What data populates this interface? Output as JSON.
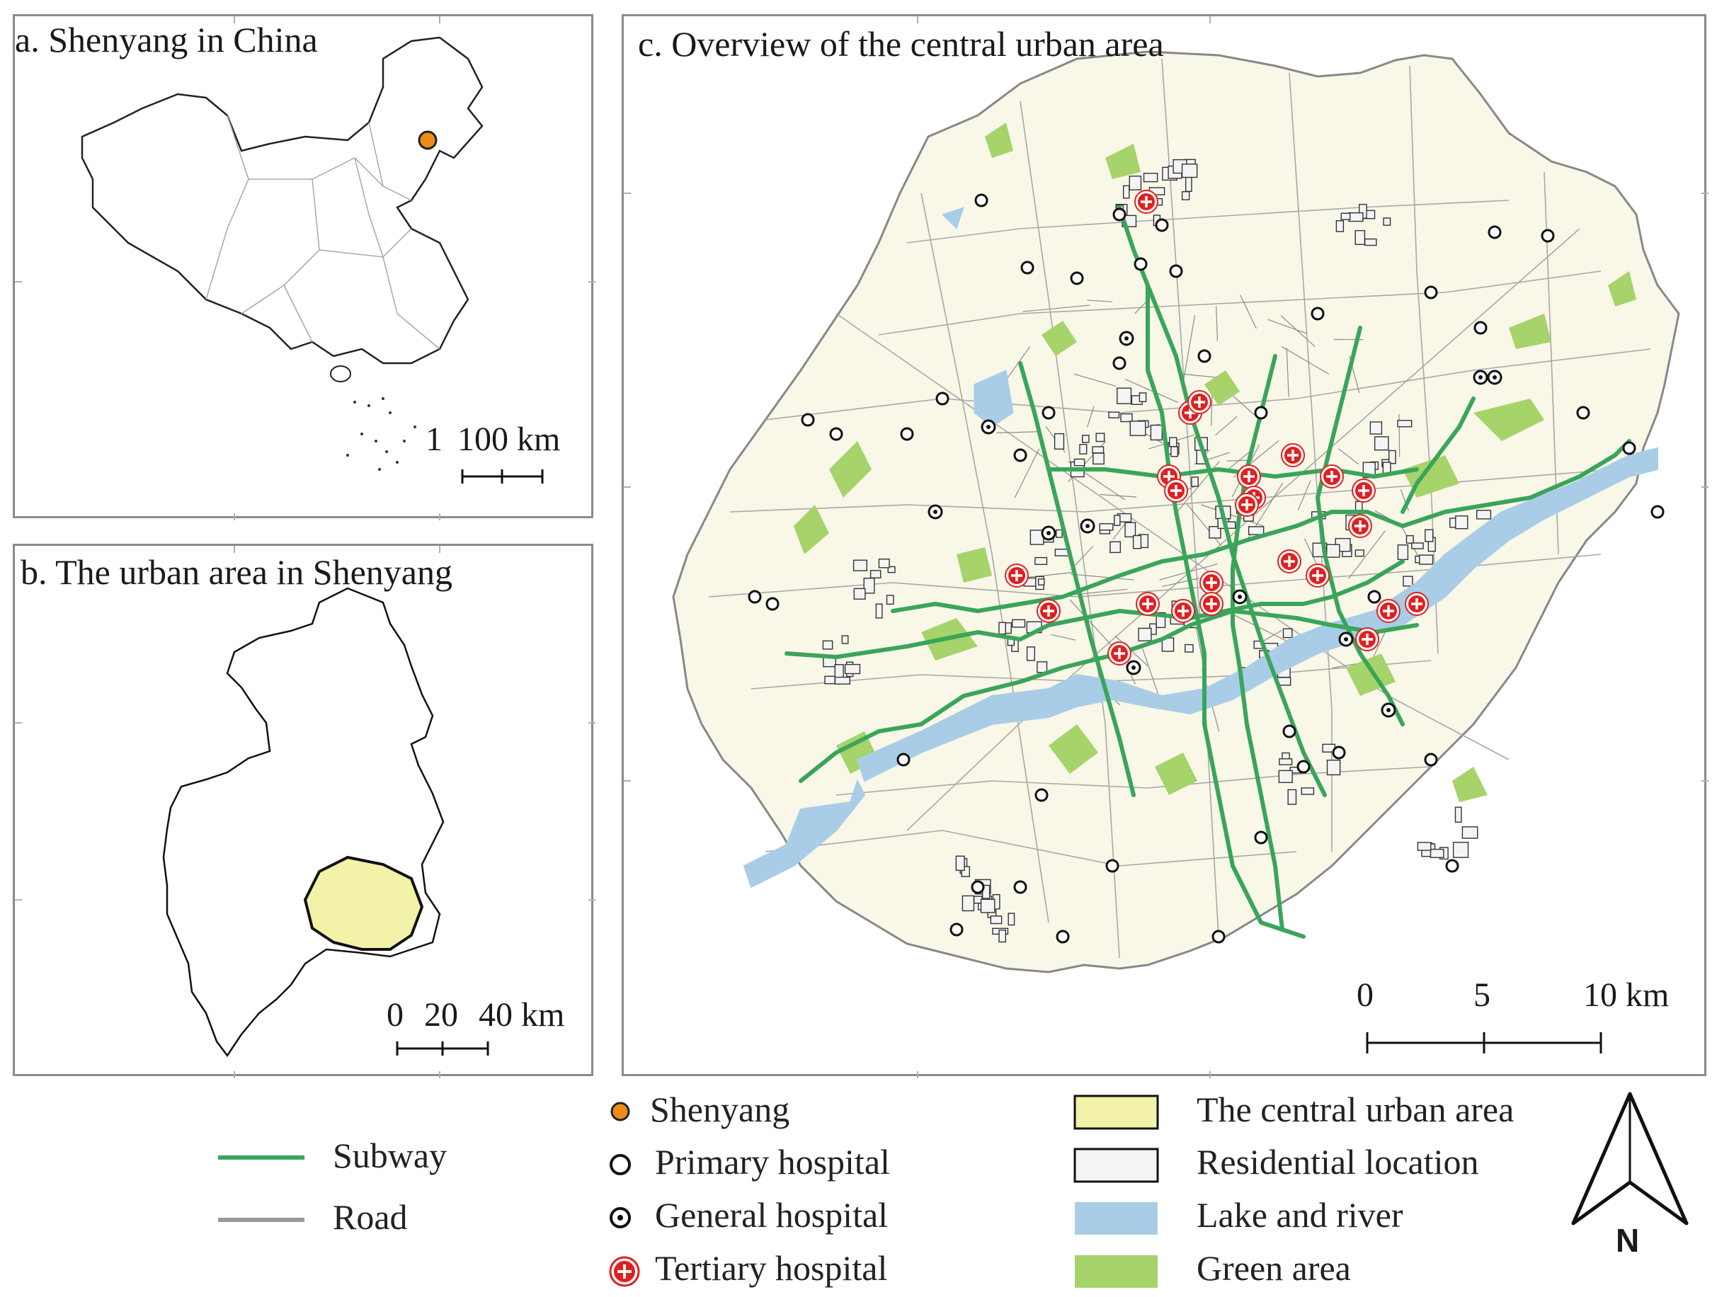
{
  "panels": {
    "a": {
      "title": "a. Shenyang in China",
      "scale_labels": [
        "1",
        "100 km"
      ]
    },
    "b": {
      "title": "b. The urban area in Shenyang",
      "scale_labels": [
        "0",
        "20",
        "40 km"
      ]
    },
    "c": {
      "title": "c. Overview of the central urban area",
      "scale_labels": [
        "0",
        "5",
        "10 km"
      ]
    }
  },
  "legend": {
    "subway": "Subway",
    "road": "Road",
    "shenyang": "Shenyang",
    "primary": "Primary hospital",
    "general": "General hospital",
    "tertiary": "Tertiary hospital",
    "central": "The central urban area",
    "residential": "Residential location",
    "water": "Lake and river",
    "green": "Green area"
  },
  "north_arrow": {
    "label": "N",
    "icon": "north-arrow-icon"
  },
  "colors": {
    "subway": "#3aa55a",
    "road": "#9a9a9a",
    "shenyang_marker": "#f08a1a",
    "tertiary": "#e02020",
    "central_area": "#f2f2a8",
    "urban_background": "#f8f7e8",
    "water": "#a9cde6",
    "green": "#a6d36a",
    "residential": "#f4f4f4"
  }
}
